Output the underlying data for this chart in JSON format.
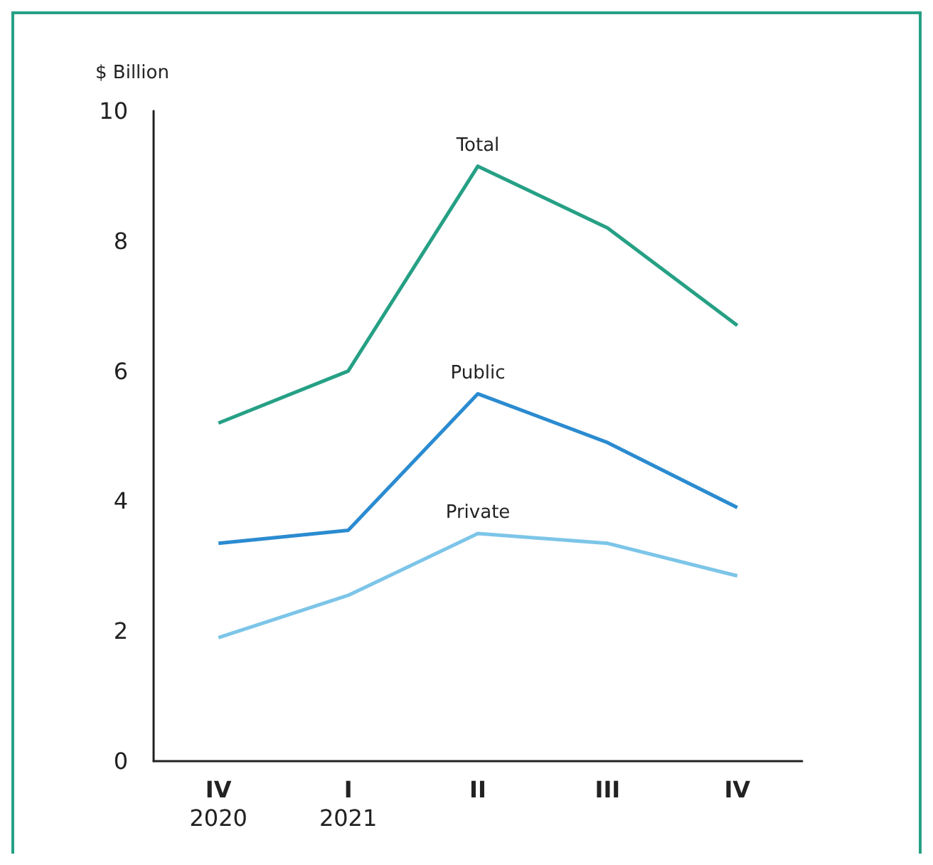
{
  "chart_data": {
    "type": "line",
    "ylabel": "$ Billion",
    "categories": [
      "IV\n2020",
      "I\n2021",
      "II",
      "III",
      "IV"
    ],
    "ylim": [
      0,
      10
    ],
    "yticks": [
      0,
      2,
      4,
      6,
      8,
      10
    ],
    "grid": false,
    "legend": false,
    "marker": "none",
    "line_style": "solid",
    "series": [
      {
        "name": "Total",
        "color": "#26a085",
        "values": [
          5.2,
          6.0,
          9.15,
          8.2,
          6.7
        ]
      },
      {
        "name": "Public",
        "color": "#2b8bd0",
        "values": [
          3.35,
          3.55,
          5.65,
          4.9,
          3.9
        ]
      },
      {
        "name": "Private",
        "color": "#7cc5e8",
        "values": [
          1.9,
          2.55,
          3.5,
          3.35,
          2.85
        ]
      }
    ]
  }
}
